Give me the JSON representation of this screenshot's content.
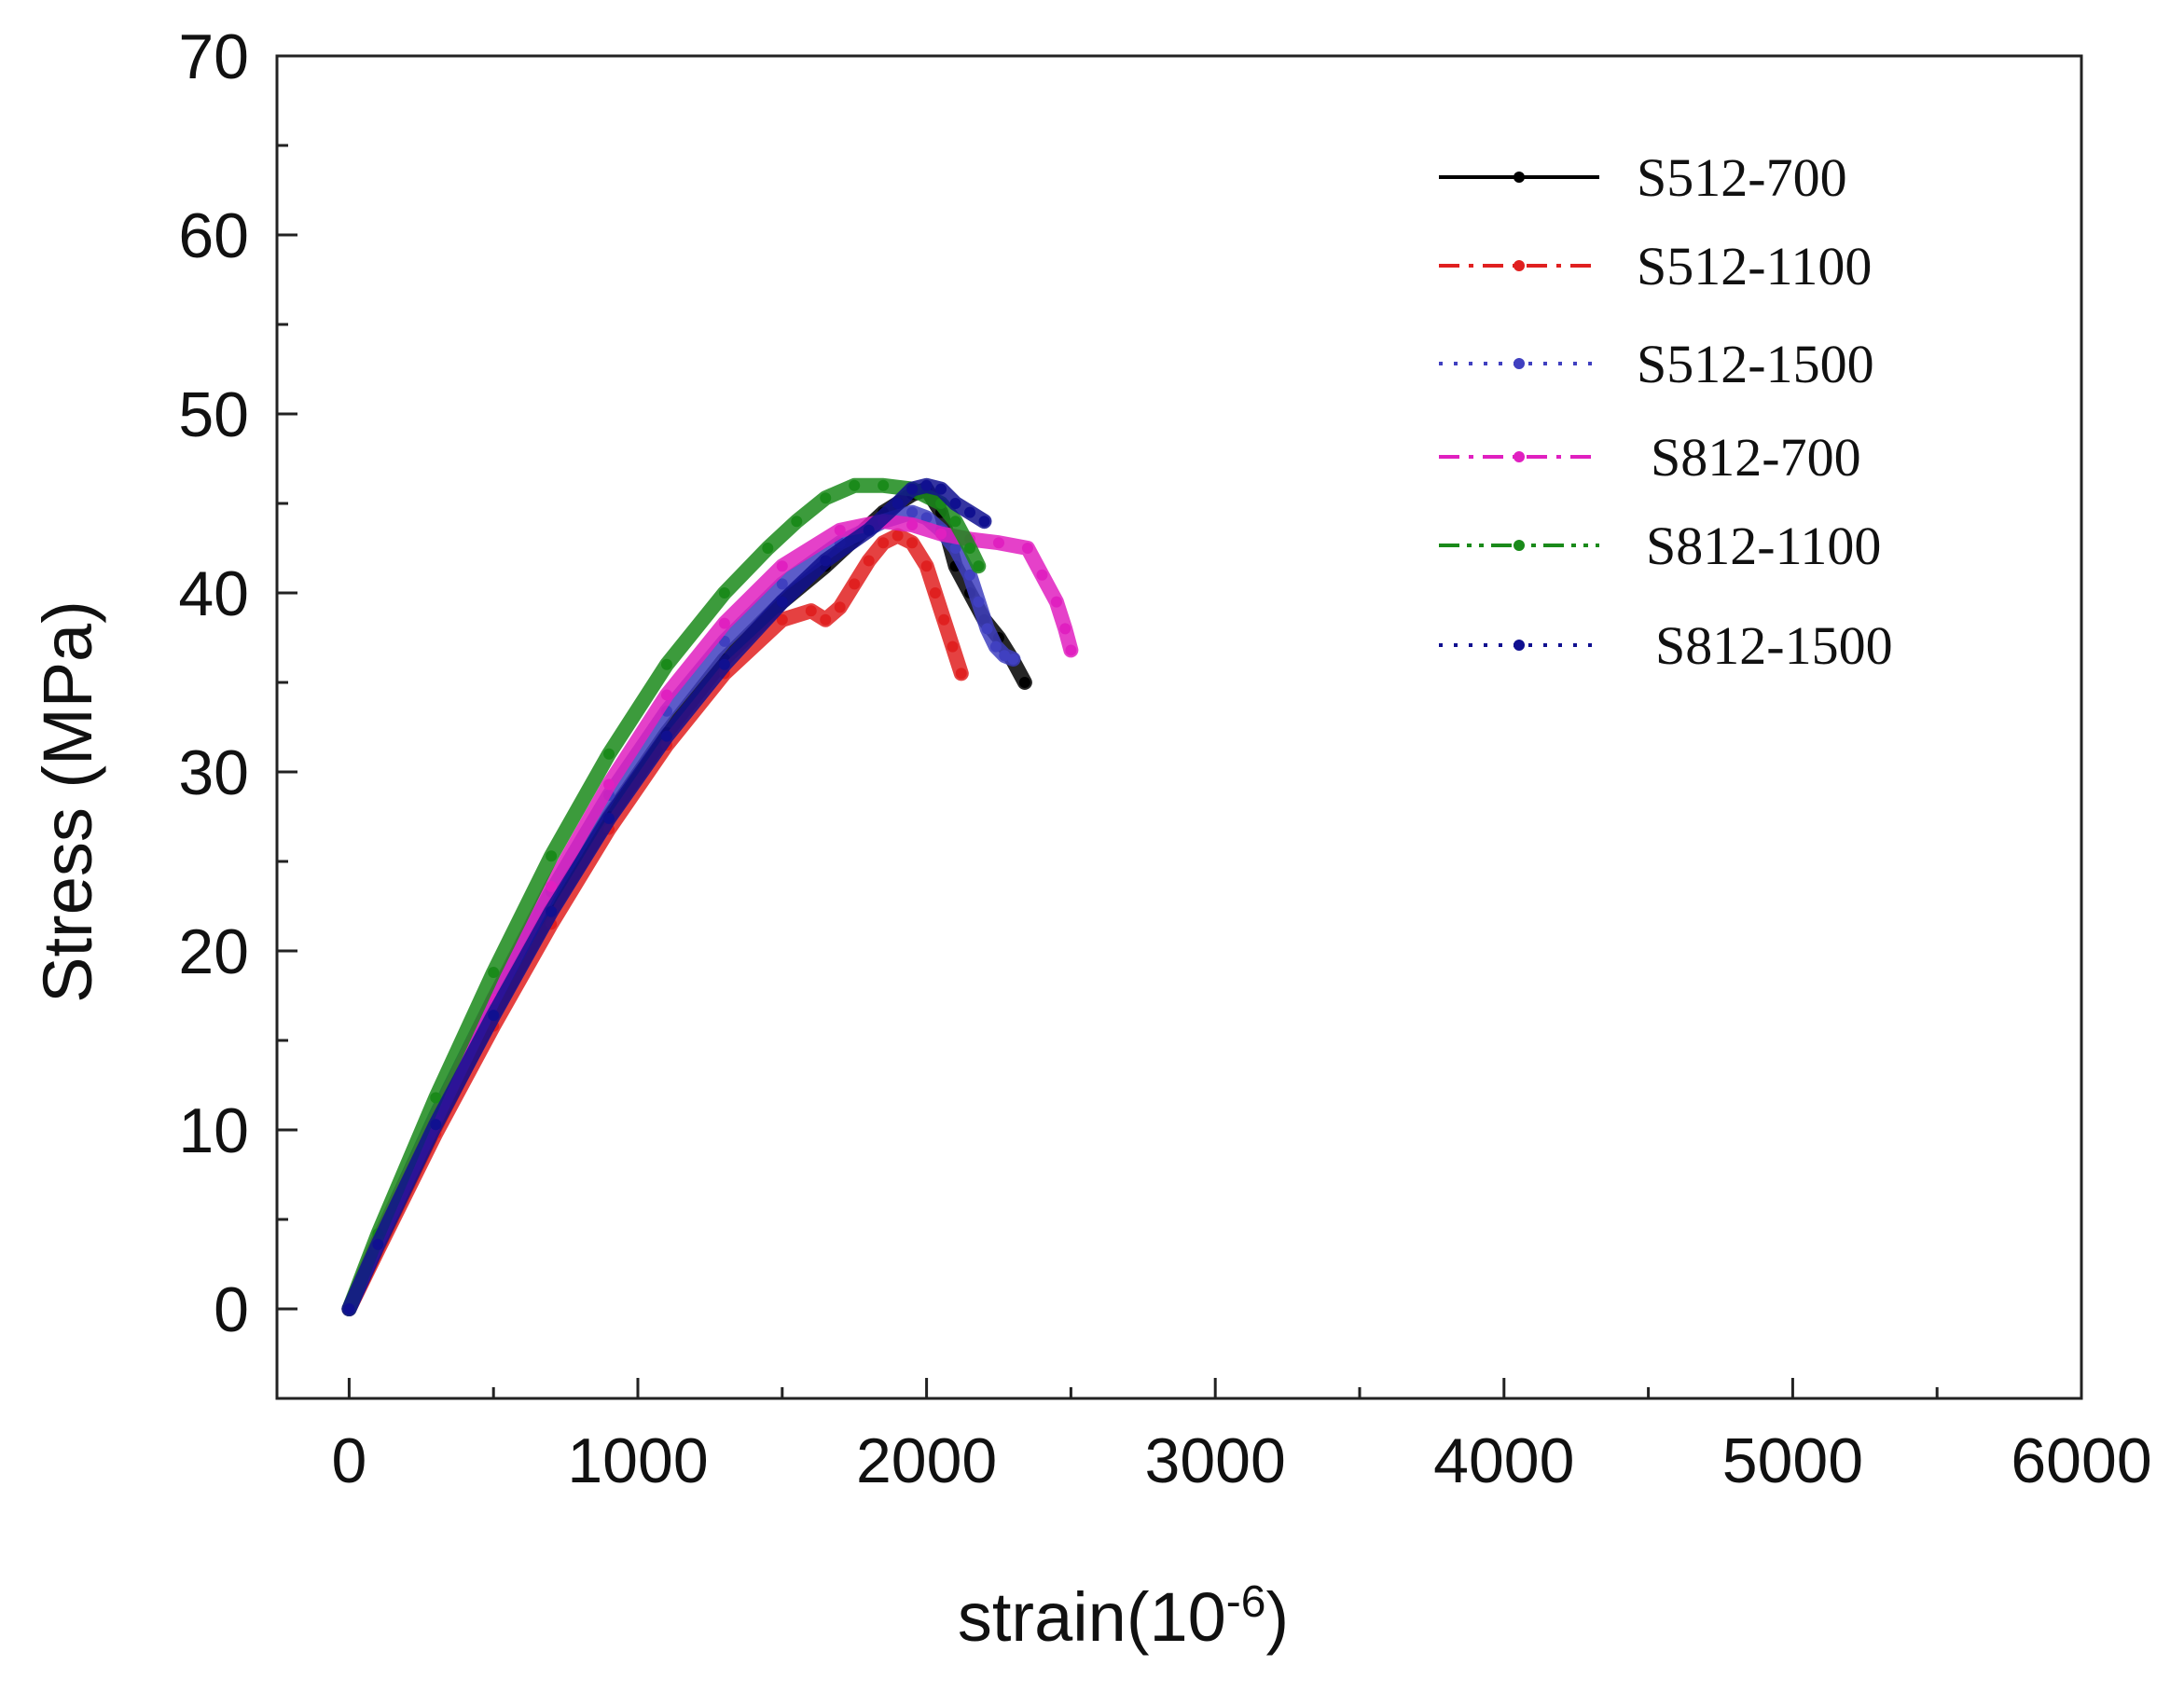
{
  "chart_data": {
    "type": "line",
    "title": "",
    "xlabel": "strain(10",
    "xlabel_sup": "-6",
    "xlabel_close": ")",
    "ylabel": "Stress (MPa)",
    "xlim": [
      -250,
      6000
    ],
    "ylim": [
      -5,
      70
    ],
    "xticks": [
      0,
      1000,
      2000,
      3000,
      4000,
      5000,
      6000
    ],
    "yticks": [
      0,
      10,
      20,
      30,
      40,
      50,
      60,
      70
    ],
    "x_tick_labels": [
      "0",
      "1000",
      "2000",
      "3000",
      "4000",
      "5000",
      "6000"
    ],
    "y_tick_labels": [
      "0",
      "10",
      "20",
      "30",
      "40",
      "50",
      "60",
      "70"
    ],
    "grid": false,
    "legend_position": "top-right",
    "series": [
      {
        "name": "S512-700",
        "color": "#000000",
        "dash": "solid",
        "marker": "dot",
        "x": [
          0,
          100,
          300,
          500,
          700,
          900,
          1100,
          1300,
          1500,
          1650,
          1750,
          1850,
          1950,
          2000,
          2050,
          2100,
          2150,
          2200,
          2250,
          2300,
          2340
        ],
        "y": [
          0,
          3.5,
          10.2,
          16.5,
          22.3,
          27.5,
          32.2,
          36.3,
          39.5,
          41.5,
          43.0,
          44.5,
          45.5,
          45.8,
          44.5,
          41.5,
          40.0,
          38.5,
          37.5,
          36.2,
          35.0
        ]
      },
      {
        "name": "S512-1100",
        "color": "#e02020",
        "dash": "dashdot",
        "marker": "circle",
        "x": [
          0,
          100,
          300,
          500,
          700,
          900,
          1100,
          1300,
          1500,
          1600,
          1650,
          1700,
          1750,
          1800,
          1850,
          1900,
          1950,
          2000,
          2030,
          2060,
          2090,
          2120
        ],
        "y": [
          0,
          3.3,
          9.8,
          15.8,
          21.5,
          26.8,
          31.5,
          35.5,
          38.5,
          39.0,
          38.5,
          39.2,
          40.5,
          41.8,
          42.8,
          43.2,
          42.8,
          41.5,
          40.0,
          38.5,
          37.0,
          35.5
        ]
      },
      {
        "name": "S512-1500",
        "color": "#4040c0",
        "dash": "dotted",
        "marker": "triangle",
        "x": [
          0,
          100,
          300,
          500,
          700,
          900,
          1100,
          1300,
          1500,
          1700,
          1850,
          1950,
          2000,
          2050,
          2100,
          2150,
          2180,
          2210,
          2240,
          2270,
          2300
        ],
        "y": [
          0,
          3.8,
          10.8,
          17.3,
          23.3,
          28.7,
          33.4,
          37.3,
          40.5,
          42.8,
          44.0,
          44.5,
          44.2,
          43.5,
          42.5,
          41.0,
          39.5,
          38.0,
          37.0,
          36.5,
          36.3
        ]
      },
      {
        "name": "S812-700",
        "color": "#e020c0",
        "dash": "dashdot",
        "marker": "triangle-down",
        "x": [
          0,
          100,
          300,
          500,
          700,
          900,
          1100,
          1300,
          1500,
          1700,
          1850,
          1950,
          2050,
          2150,
          2250,
          2350,
          2400,
          2450,
          2480,
          2500
        ],
        "y": [
          0,
          3.8,
          10.6,
          17.3,
          23.6,
          29.3,
          34.3,
          38.3,
          41.5,
          43.5,
          44.0,
          43.8,
          43.3,
          43.0,
          42.8,
          42.5,
          41.0,
          39.5,
          38.0,
          36.8
        ]
      },
      {
        "name": "S812-1100",
        "color": "#1a8a1a",
        "dash": "dashdotdot",
        "marker": "diamond",
        "x": [
          0,
          100,
          300,
          500,
          700,
          900,
          1100,
          1300,
          1450,
          1550,
          1650,
          1750,
          1850,
          1950,
          2050,
          2100,
          2150,
          2180
        ],
        "y": [
          0,
          4.2,
          11.8,
          18.8,
          25.3,
          31.0,
          36.0,
          40.0,
          42.5,
          44.0,
          45.3,
          46.0,
          46.0,
          45.8,
          45.0,
          44.0,
          42.5,
          41.5
        ]
      },
      {
        "name": "S812-1500",
        "color": "#101090",
        "dash": "dotted",
        "marker": "star",
        "x": [
          0,
          100,
          300,
          500,
          700,
          900,
          1100,
          1300,
          1500,
          1650,
          1800,
          1900,
          1950,
          2000,
          2050,
          2100,
          2150,
          2200
        ],
        "y": [
          0,
          3.6,
          10.3,
          16.4,
          22.2,
          27.4,
          32.0,
          36.0,
          39.5,
          41.8,
          43.5,
          45.0,
          45.8,
          46.0,
          45.8,
          45.0,
          44.5,
          44.0
        ]
      }
    ]
  }
}
